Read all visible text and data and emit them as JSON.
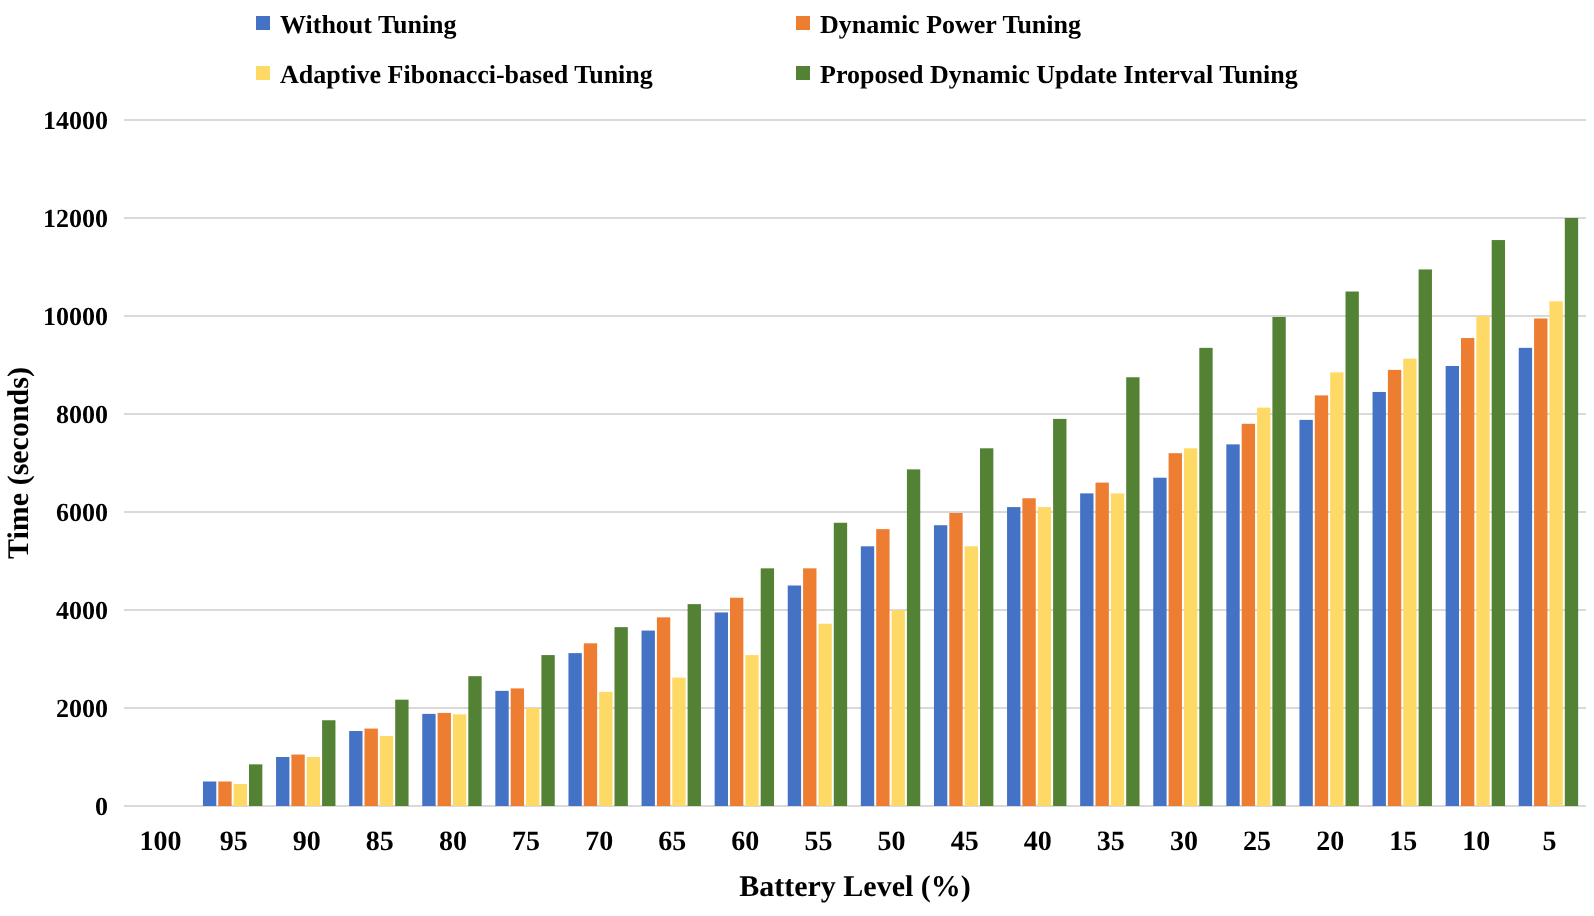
{
  "chart_data": {
    "type": "bar",
    "xlabel": "Battery Level (%)",
    "ylabel": "Time (seconds)",
    "categories": [
      "100",
      "95",
      "90",
      "85",
      "80",
      "75",
      "70",
      "65",
      "60",
      "55",
      "50",
      "45",
      "40",
      "35",
      "30",
      "25",
      "20",
      "15",
      "10",
      "5"
    ],
    "series": [
      {
        "name": "Without Tuning",
        "color": "#4472c4",
        "values": [
          0,
          500,
          1000,
          1530,
          1880,
          2350,
          3120,
          3580,
          3950,
          4500,
          5300,
          5730,
          6100,
          6380,
          6700,
          7380,
          7880,
          8450,
          8980,
          9350
        ]
      },
      {
        "name": "Dynamic Power Tuning",
        "color": "#ed7d31",
        "values": [
          0,
          500,
          1050,
          1580,
          1900,
          2400,
          3320,
          3850,
          4250,
          4850,
          5650,
          5980,
          6280,
          6600,
          7200,
          7800,
          8380,
          8900,
          9550,
          9950
        ]
      },
      {
        "name": "Adaptive Fibonacci-based Tuning",
        "color": "#ffd966",
        "values": [
          0,
          450,
          1000,
          1430,
          1870,
          2000,
          2330,
          2620,
          3080,
          3720,
          4000,
          5300,
          6100,
          6380,
          7300,
          8130,
          8850,
          9130,
          10000,
          10300
        ]
      },
      {
        "name": "Proposed Dynamic Update Interval Tuning",
        "color": "#548235",
        "values": [
          0,
          850,
          1750,
          2170,
          2650,
          3080,
          3650,
          4120,
          4850,
          5780,
          6870,
          7300,
          7900,
          8750,
          9350,
          9980,
          10500,
          10950,
          11550,
          12000
        ]
      }
    ],
    "ylim": [
      0,
      14000
    ],
    "yticks": [
      0,
      2000,
      4000,
      6000,
      8000,
      10000,
      12000,
      14000
    ],
    "grid": "y",
    "legend": "top"
  }
}
